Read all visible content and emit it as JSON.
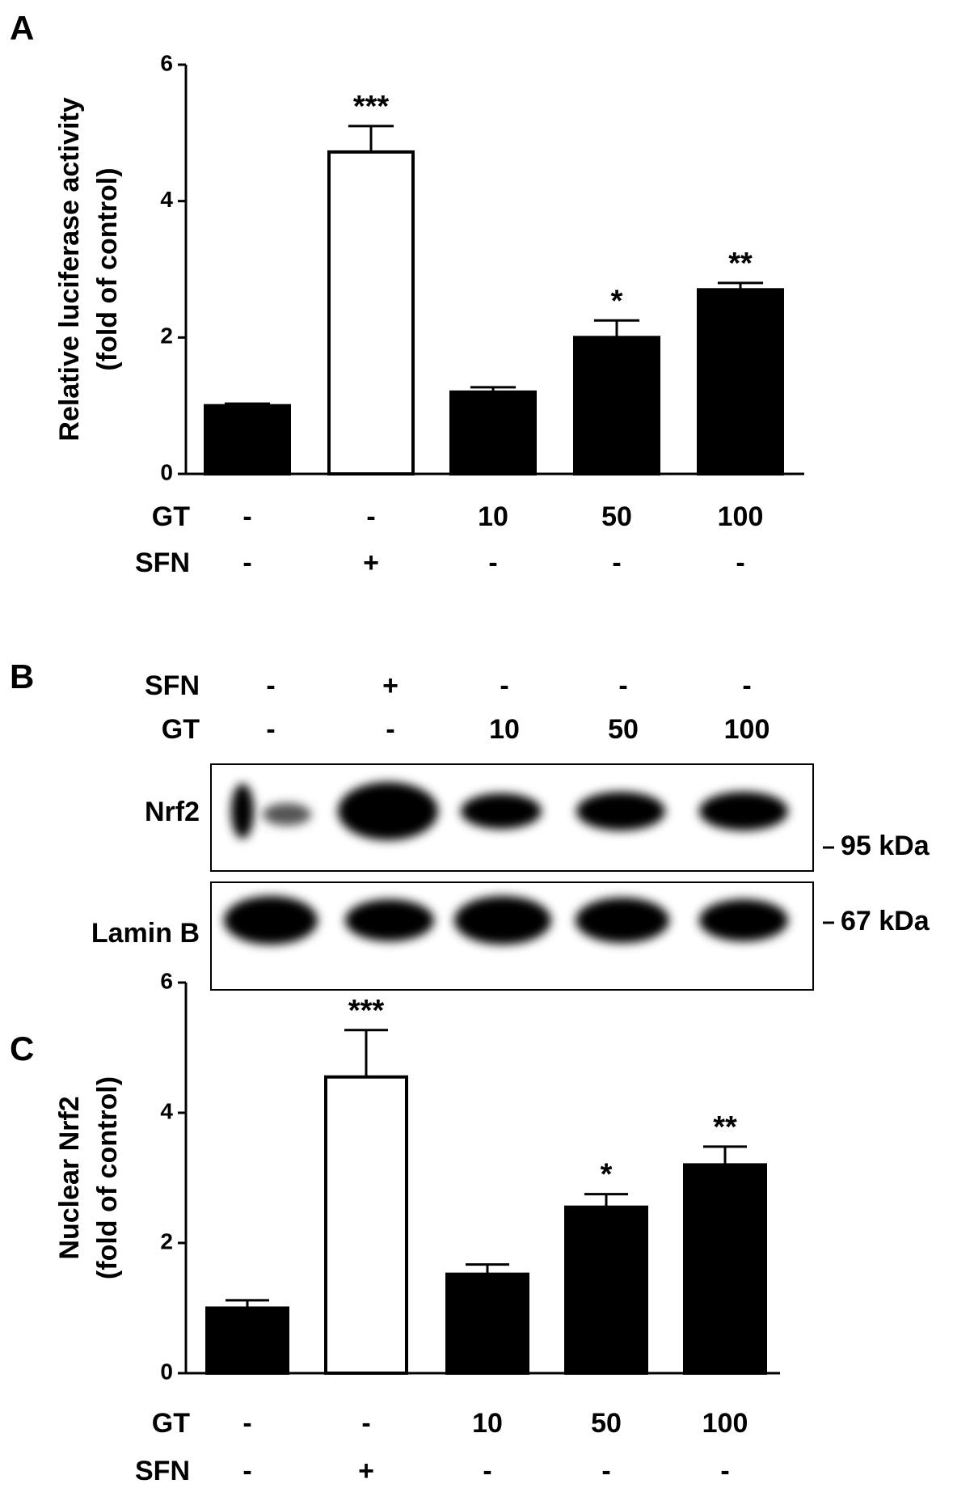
{
  "chart_data": [
    {
      "type": "bar",
      "panel": "A",
      "ylabel": [
        "Relative luciferase activity",
        "(fold of control)"
      ],
      "values": [
        1.0,
        4.72,
        1.2,
        2.0,
        2.7
      ],
      "errors": [
        0.03,
        0.38,
        0.07,
        0.25,
        0.1
      ],
      "colors": [
        "#000000",
        "#ffffff",
        "#000000",
        "#000000",
        "#000000"
      ],
      "significance": [
        null,
        "***",
        null,
        "*",
        "**"
      ],
      "ylim": [
        0,
        6
      ],
      "yticks": [
        0,
        2,
        4,
        6
      ],
      "condition_rows": [
        {
          "name": "GT",
          "values": [
            "-",
            "-",
            "10",
            "50",
            "100"
          ]
        },
        {
          "name": "SFN",
          "values": [
            "-",
            "+",
            "-",
            "-",
            "-"
          ]
        }
      ]
    },
    {
      "type": "bar",
      "panel": "C",
      "ylabel": [
        "Nuclear Nrf2",
        "(fold of control)"
      ],
      "values": [
        1.0,
        4.55,
        1.52,
        2.55,
        3.2
      ],
      "errors": [
        0.12,
        0.72,
        0.15,
        0.2,
        0.28
      ],
      "colors": [
        "#000000",
        "#ffffff",
        "#000000",
        "#000000",
        "#000000"
      ],
      "significance": [
        null,
        "***",
        null,
        "*",
        "**"
      ],
      "ylim": [
        0,
        6
      ],
      "yticks": [
        0,
        2,
        4,
        6
      ],
      "condition_rows": [
        {
          "name": "GT",
          "values": [
            "-",
            "-",
            "10",
            "50",
            "100"
          ]
        },
        {
          "name": "SFN",
          "values": [
            "-",
            "+",
            "-",
            "-",
            "-"
          ]
        }
      ]
    }
  ],
  "blot": {
    "panel": "B",
    "rows": [
      {
        "name": "SFN",
        "lanes": [
          "-",
          "+",
          "-",
          "-",
          "-"
        ]
      },
      {
        "name": "GT",
        "lanes": [
          "-",
          "-",
          "10",
          "50",
          "100"
        ]
      }
    ],
    "bands": [
      {
        "label": "Nrf2",
        "marker": "95 kDa"
      },
      {
        "label": "Lamin B",
        "marker": "67 kDa"
      }
    ]
  }
}
